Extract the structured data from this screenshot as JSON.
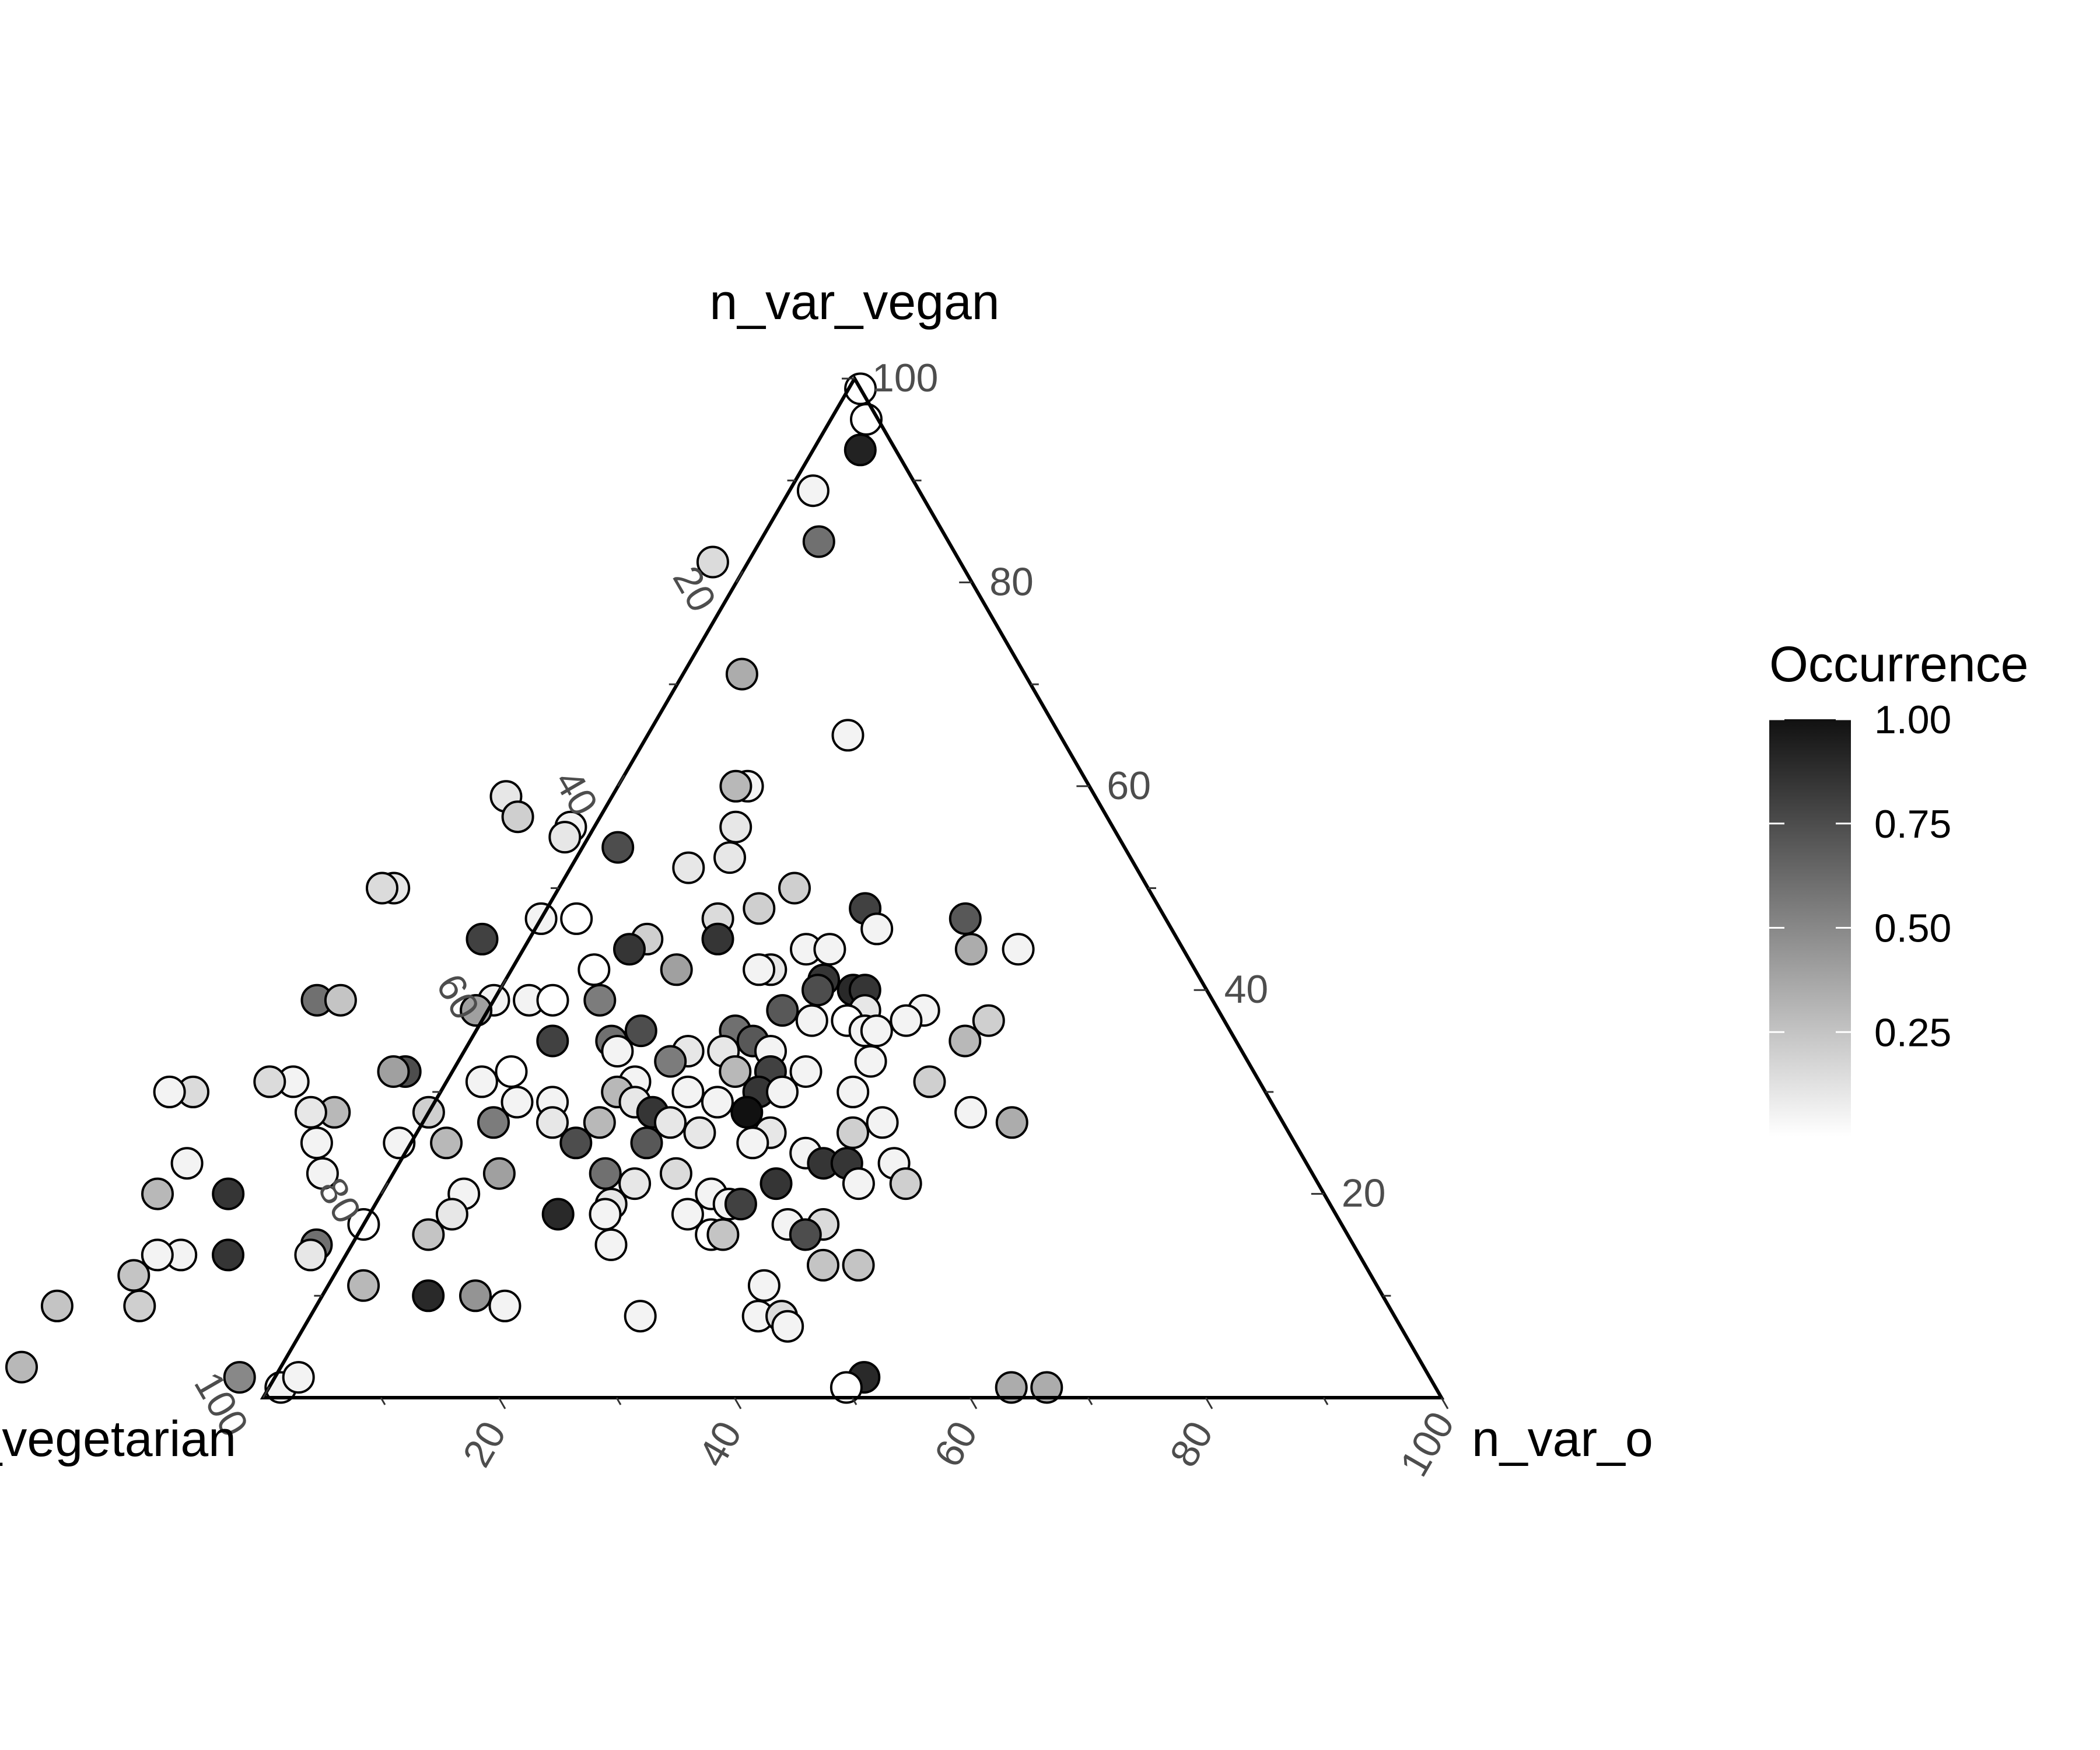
{
  "chart_data": {
    "type": "scatter",
    "subtype": "ternary",
    "axes": {
      "top": "n_var_vegan",
      "left": "n_var_vegetarian",
      "right": "n_var_o"
    },
    "ticks": [
      20,
      40,
      60,
      80,
      100
    ],
    "ternary_range": [
      0,
      100
    ],
    "grid": false,
    "legend": {
      "title": "Occurrence",
      "placement": "right",
      "range": [
        0,
        1
      ],
      "ticks": [
        "0.25",
        "0.50",
        "0.75",
        "1.00"
      ],
      "color_low": "#ffffff",
      "color_high": "#111111"
    },
    "point_fields": [
      "vegan",
      "o",
      "occurrence"
    ],
    "points": [
      [
        99,
        1,
        0
      ],
      [
        96,
        3,
        0
      ],
      [
        93,
        4,
        0.93
      ],
      [
        89,
        2,
        0.05
      ],
      [
        84,
        5,
        0.6
      ],
      [
        82,
        -3,
        0.15
      ],
      [
        71,
        5,
        0.35
      ],
      [
        65,
        17,
        0.05
      ],
      [
        60,
        11,
        0.05
      ],
      [
        60,
        10,
        0.3
      ],
      [
        59,
        -9,
        0.1
      ],
      [
        57,
        -7,
        0.2
      ],
      [
        56,
        -2,
        0.05
      ],
      [
        55,
        -2,
        0.1
      ],
      [
        54,
        3,
        0.75
      ],
      [
        50,
        -14,
        0.1
      ],
      [
        50,
        -15,
        0.15
      ],
      [
        56,
        12,
        0.1
      ],
      [
        53,
        13,
        0.1
      ],
      [
        52,
        10,
        0.1
      ],
      [
        50,
        20,
        0.2
      ],
      [
        48,
        18,
        0.2
      ],
      [
        47,
        15,
        0.15
      ],
      [
        48,
        27,
        0.8
      ],
      [
        45,
        10,
        0.2
      ],
      [
        44,
        9,
        0.85
      ],
      [
        45,
        -4,
        0.8
      ],
      [
        47,
        36,
        0.7
      ],
      [
        46,
        29,
        0.05
      ],
      [
        47,
        3,
        0
      ],
      [
        47,
        0,
        0.05
      ],
      [
        45,
        16,
        0.85
      ],
      [
        44,
        24,
        0.05
      ],
      [
        44,
        26,
        0.05
      ],
      [
        44,
        38,
        0.35
      ],
      [
        44,
        42,
        0.05
      ],
      [
        42,
        14,
        0.4
      ],
      [
        42,
        7,
        0
      ],
      [
        42,
        22,
        0.1
      ],
      [
        42,
        21,
        0.05
      ],
      [
        41,
        27,
        0.85
      ],
      [
        40,
        27,
        0.75
      ],
      [
        40,
        30,
        0.9
      ],
      [
        40,
        31,
        0.85
      ],
      [
        39,
        9,
        0.55
      ],
      [
        39,
        -15,
        0.6
      ],
      [
        39,
        -13,
        0.25
      ],
      [
        38,
        25,
        0.7
      ],
      [
        38,
        32,
        0.1
      ],
      [
        39,
        0,
        0.05
      ],
      [
        39,
        3,
        0.05
      ],
      [
        39,
        5,
        0
      ],
      [
        38,
        -1,
        0.05
      ],
      [
        38,
        -1,
        0.4
      ],
      [
        38,
        37,
        0.05
      ],
      [
        37,
        36,
        0.05
      ],
      [
        37,
        43,
        0.2
      ],
      [
        36,
        14,
        0.75
      ],
      [
        36,
        22,
        0.6
      ],
      [
        37,
        28,
        0.05
      ],
      [
        37,
        31,
        0
      ],
      [
        36,
        33,
        0.05
      ],
      [
        36,
        34,
        0.05
      ],
      [
        35,
        42,
        0.3
      ],
      [
        35,
        7,
        0.8
      ],
      [
        35,
        24,
        0.7
      ],
      [
        34,
        26,
        0.05
      ],
      [
        35,
        12,
        0.6
      ],
      [
        34,
        19,
        0.1
      ],
      [
        34,
        13,
        0.05
      ],
      [
        34,
        22,
        0.1
      ],
      [
        32,
        27,
        0.8
      ],
      [
        33,
        35,
        0.05
      ],
      [
        32,
        30,
        0.05
      ],
      [
        33,
        18,
        0.55
      ],
      [
        32,
        24,
        0.3
      ],
      [
        32,
        -4,
        0.75
      ],
      [
        32,
        -5,
        0.4
      ],
      [
        31,
        3,
        0.05
      ],
      [
        32,
        5,
        0
      ],
      [
        31,
        16,
        0.05
      ],
      [
        30,
        15,
        0.3
      ],
      [
        30,
        21,
        0.05
      ],
      [
        30,
        27,
        0.85
      ],
      [
        30,
        29,
        0.05
      ],
      [
        30,
        35,
        0.05
      ],
      [
        31,
        41,
        0.2
      ],
      [
        31,
        -13,
        0.05
      ],
      [
        31,
        -15,
        0.15
      ],
      [
        30,
        -21,
        0.15
      ],
      [
        30,
        -23,
        0.05
      ],
      [
        29,
        7,
        0.05
      ],
      [
        29,
        10,
        0.05
      ],
      [
        29,
        17,
        0.1
      ],
      [
        29,
        24,
        0.05
      ],
      [
        28,
        27,
        1
      ],
      [
        27,
        39,
        0.05
      ],
      [
        28,
        46,
        0.05
      ],
      [
        28,
        -8,
        0.3
      ],
      [
        28,
        -10,
        0.1
      ],
      [
        28,
        0,
        0.2
      ],
      [
        27,
        6,
        0.55
      ],
      [
        27,
        11,
        0.1
      ],
      [
        28,
        19,
        0.85
      ],
      [
        27,
        15,
        0.3
      ],
      [
        27,
        21,
        0.1
      ],
      [
        26,
        24,
        0.1
      ],
      [
        26,
        30,
        0.1
      ],
      [
        26,
        37,
        0.2
      ],
      [
        27,
        50,
        0.35
      ],
      [
        25,
        -8,
        0.05
      ],
      [
        25,
        -1,
        0.05
      ],
      [
        25,
        3,
        0.3
      ],
      [
        25,
        14,
        0.75
      ],
      [
        25,
        20,
        0.7
      ],
      [
        25,
        29,
        0.05
      ],
      [
        24,
        34,
        0.05
      ],
      [
        23,
        -18,
        0.05
      ],
      [
        22,
        -6,
        0.05
      ],
      [
        22,
        9,
        0.4
      ],
      [
        22,
        18,
        0.6
      ],
      [
        22,
        24,
        0.15
      ],
      [
        23,
        36,
        0.85
      ],
      [
        23,
        38,
        0.85
      ],
      [
        23,
        42,
        0.05
      ],
      [
        21,
        33,
        0.85
      ],
      [
        21,
        40,
        0.05
      ],
      [
        21,
        44,
        0.2
      ],
      [
        20,
        -19,
        0.3
      ],
      [
        20,
        -13,
        0.85
      ],
      [
        20,
        7,
        0.05
      ],
      [
        21,
        21,
        0.1
      ],
      [
        20,
        28,
        0.05
      ],
      [
        19,
        30,
        0.05
      ],
      [
        19,
        31,
        0.8
      ],
      [
        19,
        20,
        0.1
      ],
      [
        18,
        27,
        0.05
      ],
      [
        18,
        20,
        0.05
      ],
      [
        17,
        0,
        0
      ],
      [
        18,
        7,
        0.1
      ],
      [
        18,
        16,
        0.9
      ],
      [
        17,
        36,
        0.05
      ],
      [
        17,
        39,
        0.15
      ],
      [
        16,
        38,
        0.75
      ],
      [
        16,
        30,
        0
      ],
      [
        16,
        31,
        0.25
      ],
      [
        15,
        22,
        0.05
      ],
      [
        15,
        -3,
        0.6
      ],
      [
        16,
        6,
        0.25
      ],
      [
        14,
        -10,
        0.85
      ],
      [
        14,
        -3,
        0.1
      ],
      [
        14,
        -14,
        0.05
      ],
      [
        14,
        -16,
        0.05
      ],
      [
        13,
        41,
        0.25
      ],
      [
        13,
        44,
        0.25
      ],
      [
        12,
        -17,
        0.25
      ],
      [
        11,
        37,
        0.05
      ],
      [
        11,
        3,
        0.3
      ],
      [
        10,
        9,
        0.9
      ],
      [
        10,
        13,
        0.45
      ],
      [
        9,
        -22,
        0.25
      ],
      [
        9,
        -15,
        0.2
      ],
      [
        9,
        16,
        0.05
      ],
      [
        8,
        28,
        0.05
      ],
      [
        8,
        38,
        0.05
      ],
      [
        8,
        40,
        0.15
      ],
      [
        7,
        41,
        0.05
      ],
      [
        6,
        -35,
        0.25
      ],
      [
        6,
        -33,
        0.2
      ],
      [
        4,
        -34,
        0.95
      ],
      [
        3,
        -22,
        0.3
      ],
      [
        2,
        -3,
        0.5
      ],
      [
        1,
        63,
        0.35
      ],
      [
        1,
        66,
        0.35
      ],
      [
        2,
        50,
        0.9
      ],
      [
        1,
        49,
        0
      ],
      [
        1,
        1,
        0.05
      ],
      [
        2,
        2,
        0.05
      ]
    ]
  }
}
